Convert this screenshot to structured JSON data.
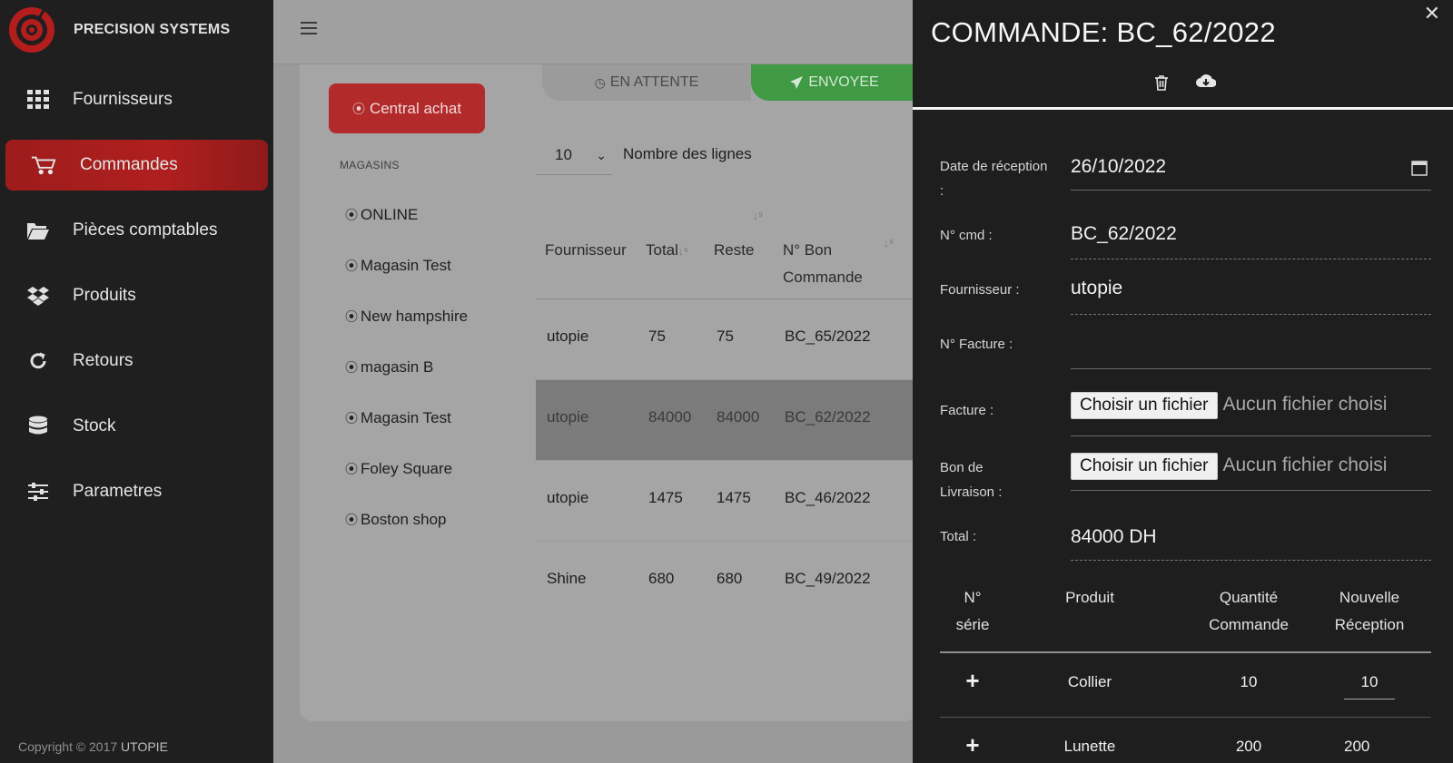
{
  "brand": {
    "name": "PRECISION SYSTEMS"
  },
  "sidebar": {
    "items": [
      {
        "label": "Fournisseurs",
        "icon": "grid-icon"
      },
      {
        "label": "Commandes",
        "icon": "cart-icon",
        "active": true
      },
      {
        "label": "Pièces comptables",
        "icon": "folder-icon"
      },
      {
        "label": "Produits",
        "icon": "dropbox-icon"
      },
      {
        "label": "Retours",
        "icon": "refresh-icon"
      },
      {
        "label": "Stock",
        "icon": "database-icon"
      },
      {
        "label": "Parametres",
        "icon": "sliders-icon"
      }
    ],
    "copyright_prefix": "Copyright © 2017",
    "copyright_brand": "UTOPIE"
  },
  "main": {
    "central_button": "Central achat",
    "magasins_title": "MAGASINS",
    "magasins": [
      "ONLINE",
      "Magasin Test",
      "New hampshire",
      "magasin B",
      "Magasin Test",
      "Foley Square",
      "Boston shop"
    ],
    "tabs": {
      "attente": "EN ATTENTE",
      "envoyee": "ENVOYEE"
    },
    "rows_per_page": "10",
    "rows_label": "Nombre des lignes",
    "table": {
      "headers": {
        "fournisseur": "Fournisseur",
        "total": "Total",
        "reste": "Reste",
        "bon": "N° Bon Commande"
      },
      "rows": [
        {
          "fournisseur": "utopie",
          "total": "75",
          "reste": "75",
          "bon": "BC_65/2022"
        },
        {
          "fournisseur": "utopie",
          "total": "84000",
          "reste": "84000",
          "bon": "BC_62/2022",
          "selected": true
        },
        {
          "fournisseur": "utopie",
          "total": "1475",
          "reste": "1475",
          "bon": "BC_46/2022"
        },
        {
          "fournisseur": "Shine",
          "total": "680",
          "reste": "680",
          "bon": "BC_49/2022"
        }
      ]
    }
  },
  "drawer": {
    "title": "COMMANDE: BC_62/2022",
    "fields": {
      "date_label": "Date de réception :",
      "date_value": "26/10/2022",
      "cmd_label": "N° cmd :",
      "cmd_value": "BC_62/2022",
      "fournisseur_label": "Fournisseur :",
      "fournisseur_value": "utopie",
      "facture_no_label": "N° Facture :",
      "facture_no_value": "",
      "facture_label": "Facture :",
      "bon_label": "Bon de Livraison :",
      "file_button": "Choisir un fichier",
      "file_none": "Aucun fichier choisi",
      "total_label": "Total :",
      "total_value": "84000 DH"
    },
    "products": {
      "headers": {
        "serie": "N° série",
        "produit": "Produit",
        "qte": "Quantité Commande",
        "reception": "Nouvelle Réception"
      },
      "rows": [
        {
          "produit": "Collier",
          "qte": "10",
          "reception": "10"
        },
        {
          "produit": "Lunette",
          "qte": "200",
          "reception": "200"
        }
      ]
    }
  },
  "colors": {
    "accent_red": "#b01f1f",
    "green": "#3f9a43",
    "sidebar_bg": "#1f1f1f",
    "drawer_bg": "#1e1e1e"
  }
}
